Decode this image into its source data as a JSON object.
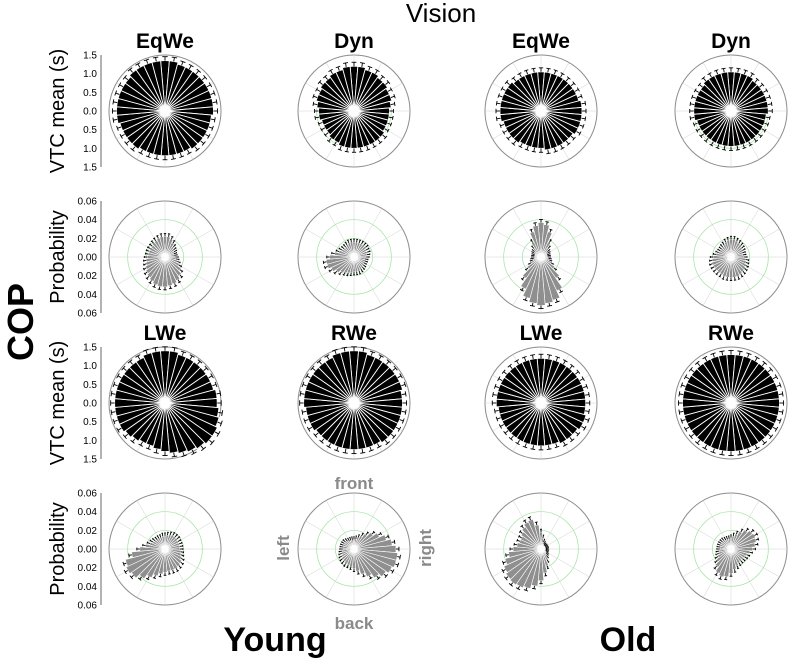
{
  "figure": {
    "title": "Vision",
    "row_group_label": "COP",
    "group_labels": [
      "Young",
      "Old"
    ],
    "direction_labels": {
      "front": "front",
      "back": "back",
      "left": "left",
      "right": "right"
    }
  },
  "chart_data": [
    {
      "type": "polar-bar",
      "metric": "vtc",
      "title": "EqWe",
      "ylabel": "VTC mean (s)",
      "group": "Young",
      "ylim": [
        0,
        1.5
      ],
      "ticks": [
        "1.5",
        "1.0",
        "0.5",
        "0.0",
        "0.5",
        "1.0",
        "1.5"
      ],
      "values": [
        1.35,
        1.35,
        1.3,
        1.3,
        1.3,
        1.3,
        1.3,
        1.3,
        1.3,
        1.3,
        1.25,
        1.25,
        1.25,
        1.25,
        1.25,
        1.2,
        1.2,
        1.2,
        1.2,
        1.2,
        1.2,
        1.2,
        1.25,
        1.25,
        1.25,
        1.25,
        1.3,
        1.3,
        1.3,
        1.3,
        1.3,
        1.3,
        1.35,
        1.35,
        1.35,
        1.35
      ]
    },
    {
      "type": "polar-bar",
      "metric": "vtc",
      "title": "Dyn",
      "group": "Young",
      "ylim": [
        0,
        1.5
      ],
      "values": [
        1.2,
        1.2,
        1.15,
        1.15,
        1.1,
        1.1,
        1.05,
        1.05,
        1.0,
        0.95,
        0.95,
        0.95,
        0.95,
        1.0,
        1.0,
        1.0,
        1.0,
        1.0,
        1.0,
        1.0,
        1.0,
        0.95,
        0.95,
        0.9,
        0.9,
        0.9,
        0.95,
        0.95,
        1.0,
        1.05,
        1.05,
        1.1,
        1.1,
        1.15,
        1.15,
        1.2
      ]
    },
    {
      "type": "polar-bar",
      "metric": "vtc",
      "title": "EqWe",
      "group": "Old",
      "ylim": [
        0,
        1.5
      ],
      "values": [
        1.05,
        1.05,
        1.05,
        1.05,
        1.05,
        1.05,
        1.05,
        1.05,
        1.1,
        1.1,
        1.1,
        1.1,
        1.1,
        1.05,
        1.05,
        1.05,
        1.05,
        1.05,
        1.0,
        1.0,
        1.0,
        1.0,
        1.05,
        1.05,
        1.05,
        1.05,
        1.1,
        1.1,
        1.1,
        1.1,
        1.1,
        1.1,
        1.05,
        1.05,
        1.05,
        1.05
      ]
    },
    {
      "type": "polar-bar",
      "metric": "vtc",
      "title": "Dyn",
      "group": "Old",
      "ylim": [
        0,
        1.5
      ],
      "values": [
        1.05,
        1.05,
        1.05,
        1.05,
        1.0,
        1.0,
        1.0,
        1.0,
        1.0,
        1.0,
        0.95,
        0.95,
        0.95,
        0.95,
        0.95,
        0.95,
        0.95,
        0.95,
        0.95,
        0.95,
        0.95,
        0.95,
        0.95,
        0.95,
        0.95,
        0.95,
        1.0,
        1.0,
        1.0,
        1.0,
        1.0,
        1.0,
        1.05,
        1.05,
        1.05,
        1.05
      ]
    },
    {
      "type": "polar-bar",
      "metric": "prob",
      "ylabel": "Probability",
      "group": "Young",
      "ylim": [
        0,
        0.06
      ],
      "ticks": [
        "0.06",
        "0.04",
        "0.02",
        "0.00",
        "0.02",
        "0.04",
        "0.06"
      ],
      "values": [
        0.022,
        0.022,
        0.02,
        0.017,
        0.014,
        0.012,
        0.011,
        0.01,
        0.01,
        0.011,
        0.012,
        0.014,
        0.017,
        0.021,
        0.025,
        0.028,
        0.03,
        0.031,
        0.032,
        0.032,
        0.031,
        0.029,
        0.027,
        0.025,
        0.023,
        0.021,
        0.02,
        0.019,
        0.018,
        0.018,
        0.018,
        0.018,
        0.019,
        0.02,
        0.021,
        0.022
      ]
    },
    {
      "type": "polar-bar",
      "metric": "prob",
      "group": "Young",
      "ylim": [
        0,
        0.06
      ],
      "values": [
        0.016,
        0.016,
        0.016,
        0.016,
        0.016,
        0.016,
        0.015,
        0.015,
        0.014,
        0.013,
        0.012,
        0.012,
        0.012,
        0.013,
        0.014,
        0.015,
        0.016,
        0.016,
        0.016,
        0.017,
        0.018,
        0.019,
        0.021,
        0.024,
        0.027,
        0.03,
        0.03,
        0.026,
        0.021,
        0.017,
        0.015,
        0.014,
        0.014,
        0.015,
        0.016,
        0.016
      ]
    },
    {
      "type": "polar-bar",
      "metric": "prob",
      "group": "Old",
      "ylim": [
        0,
        0.06
      ],
      "values": [
        0.037,
        0.035,
        0.028,
        0.018,
        0.012,
        0.009,
        0.008,
        0.007,
        0.007,
        0.007,
        0.008,
        0.009,
        0.012,
        0.018,
        0.028,
        0.04,
        0.048,
        0.05,
        0.052,
        0.05,
        0.046,
        0.038,
        0.028,
        0.018,
        0.012,
        0.009,
        0.008,
        0.007,
        0.007,
        0.007,
        0.008,
        0.009,
        0.012,
        0.018,
        0.028,
        0.034
      ]
    },
    {
      "type": "polar-bar",
      "metric": "prob",
      "group": "Old",
      "ylim": [
        0,
        0.06
      ],
      "values": [
        0.019,
        0.019,
        0.018,
        0.017,
        0.016,
        0.015,
        0.014,
        0.013,
        0.013,
        0.014,
        0.016,
        0.017,
        0.018,
        0.019,
        0.02,
        0.021,
        0.022,
        0.022,
        0.022,
        0.022,
        0.022,
        0.021,
        0.021,
        0.021,
        0.021,
        0.021,
        0.02,
        0.019,
        0.016,
        0.014,
        0.013,
        0.013,
        0.014,
        0.015,
        0.017,
        0.018
      ]
    },
    {
      "type": "polar-bar",
      "metric": "vtc",
      "title": "LWe",
      "ylabel": "VTC mean (s)",
      "group": "Young",
      "ylim": [
        0,
        1.5
      ],
      "ticks": [
        "1.5",
        "1.0",
        "0.5",
        "0.0",
        "0.5",
        "1.0",
        "1.5"
      ],
      "values": [
        1.4,
        1.4,
        1.35,
        1.35,
        1.35,
        1.35,
        1.35,
        1.35,
        1.4,
        1.4,
        1.45,
        1.5,
        1.55,
        1.55,
        1.5,
        1.45,
        1.4,
        1.35,
        1.3,
        1.25,
        1.2,
        1.2,
        1.25,
        1.3,
        1.35,
        1.35,
        1.35,
        1.35,
        1.35,
        1.35,
        1.35,
        1.35,
        1.35,
        1.35,
        1.4,
        1.4
      ]
    },
    {
      "type": "polar-bar",
      "metric": "vtc",
      "title": "RWe",
      "group": "Young",
      "ylim": [
        0,
        1.5
      ],
      "values": [
        1.4,
        1.4,
        1.35,
        1.35,
        1.35,
        1.35,
        1.35,
        1.35,
        1.3,
        1.3,
        1.3,
        1.3,
        1.3,
        1.3,
        1.3,
        1.25,
        1.25,
        1.25,
        1.25,
        1.25,
        1.25,
        1.25,
        1.25,
        1.25,
        1.3,
        1.3,
        1.3,
        1.35,
        1.35,
        1.35,
        1.35,
        1.35,
        1.35,
        1.35,
        1.4,
        1.4
      ]
    },
    {
      "type": "polar-bar",
      "metric": "vtc",
      "title": "LWe",
      "group": "Old",
      "ylim": [
        0,
        1.5
      ],
      "values": [
        1.2,
        1.2,
        1.2,
        1.2,
        1.2,
        1.2,
        1.2,
        1.2,
        1.2,
        1.2,
        1.2,
        1.25,
        1.25,
        1.2,
        1.2,
        1.2,
        1.15,
        1.15,
        1.15,
        1.15,
        1.15,
        1.15,
        1.15,
        1.15,
        1.15,
        1.15,
        1.15,
        1.2,
        1.2,
        1.2,
        1.2,
        1.2,
        1.2,
        1.2,
        1.2,
        1.2
      ]
    },
    {
      "type": "polar-bar",
      "metric": "vtc",
      "title": "RWe",
      "group": "Old",
      "ylim": [
        0,
        1.5
      ],
      "values": [
        1.3,
        1.3,
        1.3,
        1.3,
        1.3,
        1.3,
        1.3,
        1.3,
        1.3,
        1.3,
        1.3,
        1.3,
        1.3,
        1.3,
        1.3,
        1.3,
        1.3,
        1.3,
        1.3,
        1.3,
        1.3,
        1.3,
        1.3,
        1.3,
        1.3,
        1.3,
        1.3,
        1.3,
        1.3,
        1.3,
        1.3,
        1.3,
        1.3,
        1.3,
        1.3,
        1.3
      ]
    },
    {
      "type": "polar-bar",
      "metric": "prob",
      "ylabel": "Probability",
      "group": "Young",
      "ylim": [
        0,
        0.06
      ],
      "ticks": [
        "0.06",
        "0.04",
        "0.02",
        "0.00",
        "0.02",
        "0.04",
        "0.06"
      ],
      "values": [
        0.014,
        0.015,
        0.016,
        0.017,
        0.017,
        0.017,
        0.016,
        0.016,
        0.016,
        0.016,
        0.017,
        0.018,
        0.02,
        0.022,
        0.023,
        0.024,
        0.024,
        0.024,
        0.025,
        0.027,
        0.03,
        0.034,
        0.039,
        0.044,
        0.046,
        0.044,
        0.036,
        0.027,
        0.021,
        0.017,
        0.015,
        0.014,
        0.013,
        0.013,
        0.013,
        0.014
      ]
    },
    {
      "type": "polar-bar",
      "metric": "prob",
      "group": "Young",
      "ylim": [
        0,
        0.06
      ],
      "values": [
        0.01,
        0.011,
        0.013,
        0.016,
        0.02,
        0.025,
        0.03,
        0.036,
        0.041,
        0.045,
        0.047,
        0.047,
        0.045,
        0.042,
        0.038,
        0.033,
        0.028,
        0.024,
        0.021,
        0.019,
        0.018,
        0.018,
        0.017,
        0.016,
        0.015,
        0.014,
        0.013,
        0.012,
        0.012,
        0.012,
        0.012,
        0.012,
        0.011,
        0.01,
        0.01,
        0.01
      ]
    },
    {
      "type": "polar-bar",
      "metric": "prob",
      "group": "Old",
      "ylim": [
        0,
        0.06
      ],
      "values": [
        0.018,
        0.012,
        0.008,
        0.006,
        0.005,
        0.005,
        0.005,
        0.005,
        0.005,
        0.005,
        0.005,
        0.005,
        0.006,
        0.007,
        0.009,
        0.013,
        0.019,
        0.026,
        0.034,
        0.04,
        0.044,
        0.046,
        0.047,
        0.046,
        0.044,
        0.04,
        0.035,
        0.03,
        0.026,
        0.024,
        0.024,
        0.026,
        0.029,
        0.032,
        0.033,
        0.026
      ]
    },
    {
      "type": "polar-bar",
      "metric": "prob",
      "group": "Old",
      "ylim": [
        0,
        0.06
      ],
      "values": [
        0.012,
        0.014,
        0.017,
        0.021,
        0.025,
        0.028,
        0.029,
        0.028,
        0.026,
        0.023,
        0.02,
        0.018,
        0.017,
        0.016,
        0.016,
        0.017,
        0.019,
        0.022,
        0.026,
        0.03,
        0.031,
        0.029,
        0.024,
        0.019,
        0.016,
        0.014,
        0.013,
        0.012,
        0.012,
        0.012,
        0.012,
        0.012,
        0.012,
        0.011,
        0.011,
        0.011
      ]
    }
  ]
}
